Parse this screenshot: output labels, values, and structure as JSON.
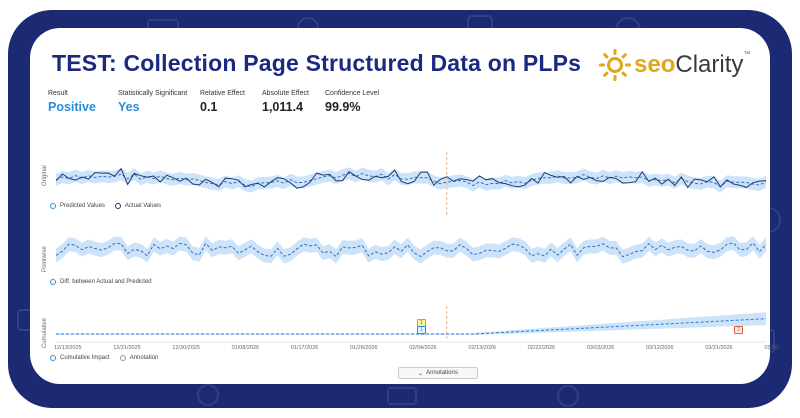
{
  "title": "TEST: Collection Page Structured Data on PLPs",
  "logo": {
    "seo": "seo",
    "clarity": "Clarity",
    "tm": "™"
  },
  "metrics": [
    {
      "label": "Result",
      "value": "Positive",
      "color": "#2a8fd8"
    },
    {
      "label": "Statistically Significant",
      "value": "Yes",
      "color": "#2a8fd8"
    },
    {
      "label": "Relative Effect",
      "value": "0.1",
      "color": "#222222"
    },
    {
      "label": "Absolute Effect",
      "value": "1,011.4",
      "color": "#222222"
    },
    {
      "label": "Confidence Level",
      "value": "99.9%",
      "color": "#222222"
    }
  ],
  "panels": {
    "original": {
      "axis_title": "Original",
      "legend": [
        "Predicted Values",
        "Actual Values"
      ]
    },
    "pointwise": {
      "axis_title": "Pointwise",
      "legend": [
        "Diff. between Actual and Predicted"
      ]
    },
    "cumulative": {
      "axis_title": "Cumulative",
      "legend": [
        "Cumulative Impact",
        "Annotation"
      ],
      "annotation_markers": [
        "1",
        "1",
        "2"
      ]
    }
  },
  "x_axis_labels": [
    "12/13/2025",
    "12/21/2025",
    "12/30/2025",
    "01/08/2026",
    "01/17/2026",
    "01/26/2026",
    "02/04/2026",
    "02/13/2026",
    "02/22/2026",
    "03/03/2026",
    "03/12/2026",
    "03/21/2026",
    "03/30"
  ],
  "annotations_button": {
    "label": "Annotations"
  },
  "colors": {
    "frame": "#1b2a72",
    "title": "#1a2a80",
    "accent": "#2a8fd8",
    "band": "#bfdcf7",
    "actual": "#1e3b6e",
    "intervention": "#f0a070"
  }
}
